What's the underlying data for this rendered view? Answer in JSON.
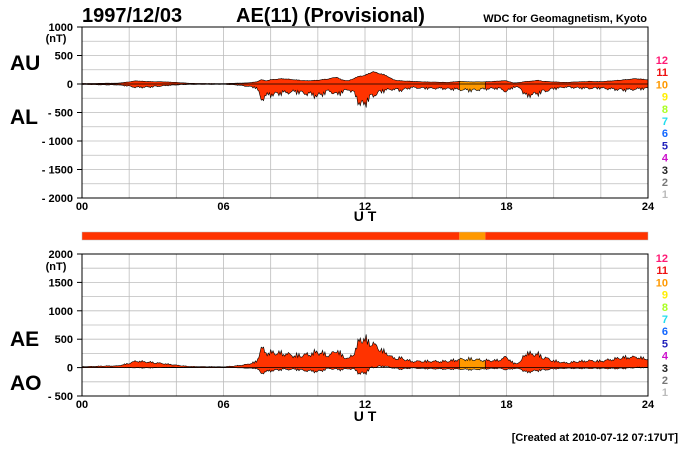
{
  "header": {
    "date": "1997/12/03",
    "title": "AE(11) (Provisional)",
    "source": "WDC for Geomagnetism, Kyoto"
  },
  "footer": {
    "created": "[Created at 2010-07-12 07:17UT]"
  },
  "legend": {
    "entries": [
      {
        "label": "12",
        "color": "#ff1a75"
      },
      {
        "label": "11",
        "color": "#ee1111"
      },
      {
        "label": "10",
        "color": "#ff9900"
      },
      {
        "label": "9",
        "color": "#ffee00"
      },
      {
        "label": "8",
        "color": "#aaff22"
      },
      {
        "label": "7",
        "color": "#22ddee"
      },
      {
        "label": "6",
        "color": "#1166ff"
      },
      {
        "label": "5",
        "color": "#2222bb"
      },
      {
        "label": "4",
        "color": "#cc11cc"
      },
      {
        "label": "3",
        "color": "#222222"
      },
      {
        "label": "2",
        "color": "#777777"
      },
      {
        "label": "1",
        "color": "#bbbbbb"
      }
    ]
  },
  "chart_data": [
    {
      "type": "area",
      "series": [
        {
          "name": "AU",
          "label": "AU"
        },
        {
          "name": "AL",
          "label": "AL"
        }
      ],
      "unit": "(nT)",
      "xlabel": "U T",
      "xlim": [
        0,
        24
      ],
      "ylim": [
        -2000,
        1000
      ],
      "yticks": [
        1000,
        500,
        0,
        -500,
        -1000,
        -1500,
        -2000
      ],
      "ytick_labels": [
        "1000",
        "500",
        "0",
        "- 500",
        "- 1000",
        "- 1500",
        "- 2000"
      ],
      "xticks": [
        0,
        6,
        12,
        18,
        24
      ],
      "xtick_labels": [
        "00",
        "06",
        "12",
        "18",
        "24"
      ],
      "grid": true,
      "fill_color": "#ff3300",
      "points": [
        [
          0.0,
          10,
          -10
        ],
        [
          0.5,
          10,
          -15
        ],
        [
          1.0,
          15,
          -20
        ],
        [
          1.5,
          15,
          -20
        ],
        [
          2.0,
          40,
          -50
        ],
        [
          2.3,
          60,
          -80
        ],
        [
          2.6,
          50,
          -75
        ],
        [
          3.0,
          45,
          -65
        ],
        [
          3.5,
          40,
          -40
        ],
        [
          4.0,
          30,
          -20
        ],
        [
          4.5,
          15,
          -10
        ],
        [
          5.0,
          10,
          -10
        ],
        [
          5.5,
          10,
          -10
        ],
        [
          6.0,
          8,
          -8
        ],
        [
          6.5,
          15,
          -20
        ],
        [
          7.0,
          20,
          -50
        ],
        [
          7.4,
          40,
          -90
        ],
        [
          7.6,
          80,
          -350
        ],
        [
          7.8,
          60,
          -280
        ],
        [
          8.0,
          80,
          -250
        ],
        [
          8.5,
          100,
          -210
        ],
        [
          9.0,
          80,
          -180
        ],
        [
          9.5,
          60,
          -220
        ],
        [
          10.0,
          70,
          -280
        ],
        [
          10.5,
          100,
          -160
        ],
        [
          10.8,
          130,
          -250
        ],
        [
          11.0,
          80,
          -200
        ],
        [
          11.3,
          60,
          -120
        ],
        [
          11.6,
          120,
          -260
        ],
        [
          11.8,
          150,
          -500
        ],
        [
          12.0,
          160,
          -450
        ],
        [
          12.3,
          230,
          -280
        ],
        [
          12.6,
          200,
          -200
        ],
        [
          12.9,
          160,
          -140
        ],
        [
          13.2,
          80,
          -120
        ],
        [
          13.5,
          60,
          -150
        ],
        [
          14.0,
          50,
          -80
        ],
        [
          14.5,
          40,
          -100
        ],
        [
          15.0,
          35,
          -100
        ],
        [
          15.5,
          30,
          -110
        ],
        [
          16.0,
          50,
          -130
        ],
        [
          16.5,
          40,
          -150
        ],
        [
          17.0,
          40,
          -120
        ],
        [
          17.5,
          50,
          -100
        ],
        [
          17.8,
          60,
          -120
        ],
        [
          18.0,
          60,
          -180
        ],
        [
          18.3,
          20,
          -70
        ],
        [
          18.6,
          30,
          -90
        ],
        [
          18.8,
          50,
          -300
        ],
        [
          19.0,
          50,
          -250
        ],
        [
          19.3,
          70,
          -230
        ],
        [
          19.6,
          50,
          -170
        ],
        [
          20.0,
          40,
          -110
        ],
        [
          20.5,
          30,
          -70
        ],
        [
          21.0,
          40,
          -90
        ],
        [
          21.5,
          50,
          -100
        ],
        [
          22.0,
          45,
          -95
        ],
        [
          22.5,
          60,
          -120
        ],
        [
          23.0,
          80,
          -140
        ],
        [
          23.5,
          100,
          -120
        ],
        [
          24.0,
          80,
          -100
        ]
      ]
    },
    {
      "type": "area",
      "series": [
        {
          "name": "AE",
          "label": "AE"
        },
        {
          "name": "AO",
          "label": "AO"
        }
      ],
      "unit": "(nT)",
      "xlabel": "U T",
      "xlim": [
        0,
        24
      ],
      "ylim": [
        -500,
        2000
      ],
      "yticks": [
        2000,
        1500,
        1000,
        500,
        0,
        -500
      ],
      "ytick_labels": [
        "2000",
        "1500",
        "1000",
        "500",
        "0",
        "- 500"
      ],
      "xticks": [
        0,
        6,
        12,
        18,
        24
      ],
      "xtick_labels": [
        "00",
        "06",
        "12",
        "18",
        "24"
      ],
      "grid": true,
      "fill_color": "#ff3300"
    }
  ],
  "status_bar": {
    "segments": [
      {
        "from": 0,
        "to": 16,
        "level": "11"
      },
      {
        "from": 16,
        "to": 17.1,
        "level": "10"
      },
      {
        "from": 17.1,
        "to": 24,
        "level": "11"
      }
    ]
  }
}
